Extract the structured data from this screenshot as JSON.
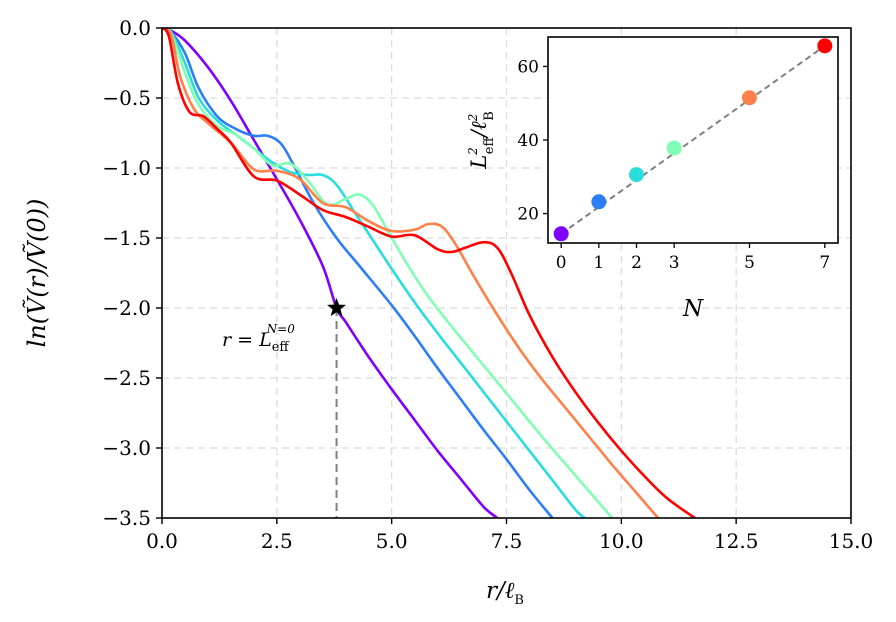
{
  "chart_data": [
    {
      "type": "line",
      "title": "",
      "xlabel": "r/ℓ",
      "xlabel_sub": "B",
      "ylabel": "ln(Ṽ(r)/Ṽ(0))",
      "xlim": [
        0,
        15
      ],
      "ylim": [
        -3.5,
        0
      ],
      "xticks": [
        0.0,
        2.5,
        5.0,
        7.5,
        10.0,
        12.5,
        15.0
      ],
      "xtick_labels": [
        "0.0",
        "2.5",
        "5.0",
        "7.5",
        "10.0",
        "12.5",
        "15.0"
      ],
      "yticks": [
        0.0,
        -0.5,
        -1.0,
        -1.5,
        -2.0,
        -2.5,
        -3.0,
        -3.5
      ],
      "ytick_labels": [
        "0.0",
        "−0.5",
        "−1.0",
        "−1.5",
        "−2.0",
        "−2.5",
        "−3.0",
        "−3.5"
      ],
      "grid": true,
      "series": [
        {
          "name": "N=0",
          "color": "#8000ff",
          "x": [
            0,
            0.2,
            0.5,
            1.0,
            1.5,
            2.0,
            2.5,
            3.0,
            3.5,
            3.8,
            4.0,
            4.5,
            5.0,
            5.5,
            6.0,
            6.5,
            7.0,
            7.3
          ],
          "y": [
            0,
            -0.02,
            -0.09,
            -0.28,
            -0.52,
            -0.8,
            -1.08,
            -1.37,
            -1.7,
            -2.0,
            -2.1,
            -2.35,
            -2.58,
            -2.8,
            -3.02,
            -3.22,
            -3.42,
            -3.5
          ]
        },
        {
          "name": "N=1",
          "color": "#2c7ef7",
          "x": [
            0,
            0.2,
            0.5,
            0.8,
            1.2,
            1.6,
            2.0,
            2.3,
            2.6,
            2.9,
            3.3,
            3.8,
            4.3,
            5.0,
            5.5,
            6.0,
            6.5,
            7.0,
            7.5,
            8.0,
            8.5
          ],
          "y": [
            0,
            -0.03,
            -0.18,
            -0.43,
            -0.63,
            -0.72,
            -0.77,
            -0.77,
            -0.83,
            -1.0,
            -1.25,
            -1.5,
            -1.7,
            -1.98,
            -2.2,
            -2.43,
            -2.65,
            -2.87,
            -3.08,
            -3.3,
            -3.5
          ]
        },
        {
          "name": "N=2",
          "color": "#2adddd",
          "x": [
            0,
            0.2,
            0.5,
            0.8,
            1.2,
            1.6,
            2.0,
            2.4,
            2.8,
            3.2,
            3.5,
            3.8,
            4.2,
            4.6,
            5.0,
            5.5,
            6.0,
            6.5,
            7.0,
            7.5,
            8.0,
            8.5,
            9.0,
            9.2
          ],
          "y": [
            0,
            -0.03,
            -0.25,
            -0.5,
            -0.66,
            -0.76,
            -0.86,
            -0.96,
            -1.03,
            -1.05,
            -1.05,
            -1.12,
            -1.32,
            -1.52,
            -1.72,
            -1.96,
            -2.18,
            -2.39,
            -2.6,
            -2.81,
            -3.02,
            -3.23,
            -3.44,
            -3.5
          ]
        },
        {
          "name": "N=3",
          "color": "#80ffb4",
          "x": [
            0,
            0.2,
            0.5,
            0.8,
            1.2,
            1.6,
            2.0,
            2.4,
            2.8,
            3.2,
            3.6,
            4.0,
            4.3,
            4.6,
            5.0,
            5.4,
            5.8,
            6.3,
            6.8,
            7.3,
            7.8,
            8.3,
            8.8,
            9.3,
            9.8
          ],
          "y": [
            0,
            -0.04,
            -0.32,
            -0.55,
            -0.7,
            -0.76,
            -0.86,
            -0.98,
            -0.97,
            -1.1,
            -1.26,
            -1.22,
            -1.19,
            -1.27,
            -1.5,
            -1.72,
            -1.92,
            -2.13,
            -2.33,
            -2.53,
            -2.73,
            -2.93,
            -3.12,
            -3.31,
            -3.5
          ]
        },
        {
          "name": "N=5",
          "color": "#ff8048",
          "x": [
            0,
            0.2,
            0.4,
            0.7,
            1.0,
            1.5,
            2.0,
            2.5,
            3.0,
            3.5,
            4.0,
            4.5,
            5.0,
            5.5,
            5.8,
            6.1,
            6.4,
            6.8,
            7.3,
            7.8,
            8.3,
            8.8,
            9.3,
            9.8,
            10.3,
            10.8
          ],
          "y": [
            0,
            -0.05,
            -0.35,
            -0.58,
            -0.68,
            -0.82,
            -1.01,
            -1.02,
            -1.08,
            -1.25,
            -1.28,
            -1.38,
            -1.45,
            -1.44,
            -1.4,
            -1.42,
            -1.55,
            -1.78,
            -2.05,
            -2.3,
            -2.52,
            -2.72,
            -2.92,
            -3.12,
            -3.31,
            -3.5
          ]
        },
        {
          "name": "N=7",
          "color": "#ff0000",
          "x": [
            0,
            0.15,
            0.35,
            0.6,
            0.9,
            1.2,
            1.5,
            2.0,
            2.5,
            3.0,
            3.5,
            4.0,
            4.5,
            5.0,
            5.5,
            6.0,
            6.3,
            6.6,
            7.0,
            7.3,
            7.6,
            8.0,
            8.5,
            9.0,
            9.5,
            10.0,
            10.5,
            11.0,
            11.6
          ],
          "y": [
            0,
            -0.06,
            -0.4,
            -0.6,
            -0.63,
            -0.72,
            -0.82,
            -1.06,
            -1.09,
            -1.19,
            -1.3,
            -1.35,
            -1.42,
            -1.49,
            -1.48,
            -1.58,
            -1.6,
            -1.57,
            -1.53,
            -1.57,
            -1.75,
            -2.05,
            -2.35,
            -2.6,
            -2.82,
            -3.02,
            -3.2,
            -3.36,
            -3.5
          ]
        }
      ],
      "star_point": {
        "x": 3.8,
        "y": -2.0
      },
      "vline_x": 3.8,
      "annotation": {
        "prefix": "r = L",
        "sub": "eff",
        "sup": "N=0"
      }
    },
    {
      "type": "scatter",
      "xlabel": "N",
      "ylabel": "L²eff/ℓ²B",
      "ylabel_main": "L",
      "ylabel_sup": "2",
      "ylabel_sub": "eff",
      "ylabel_denom": "/ℓ",
      "ylabel_denom_sup": "2",
      "ylabel_denom_sub": "B",
      "xlim": [
        -0.35,
        7.35
      ],
      "ylim": [
        12,
        68
      ],
      "xticks": [
        0,
        1,
        2,
        3,
        5,
        7
      ],
      "xtick_labels": [
        "0",
        "1",
        "2",
        "3",
        "5",
        "7"
      ],
      "yticks": [
        20,
        40,
        60
      ],
      "ytick_labels": [
        "20",
        "40",
        "60"
      ],
      "points": [
        {
          "N": 0,
          "value": 14.5,
          "color": "#8000ff"
        },
        {
          "N": 1,
          "value": 23.2,
          "color": "#2c7ef7"
        },
        {
          "N": 2,
          "value": 30.6,
          "color": "#2adddd"
        },
        {
          "N": 3,
          "value": 37.8,
          "color": "#80ffb4"
        },
        {
          "N": 5,
          "value": 51.5,
          "color": "#ff8048"
        },
        {
          "N": 7,
          "value": 65.6,
          "color": "#ff0000"
        }
      ],
      "fit_line": {
        "x": [
          0,
          7
        ],
        "y": [
          14.5,
          65.6
        ],
        "color": "#808080"
      }
    }
  ]
}
